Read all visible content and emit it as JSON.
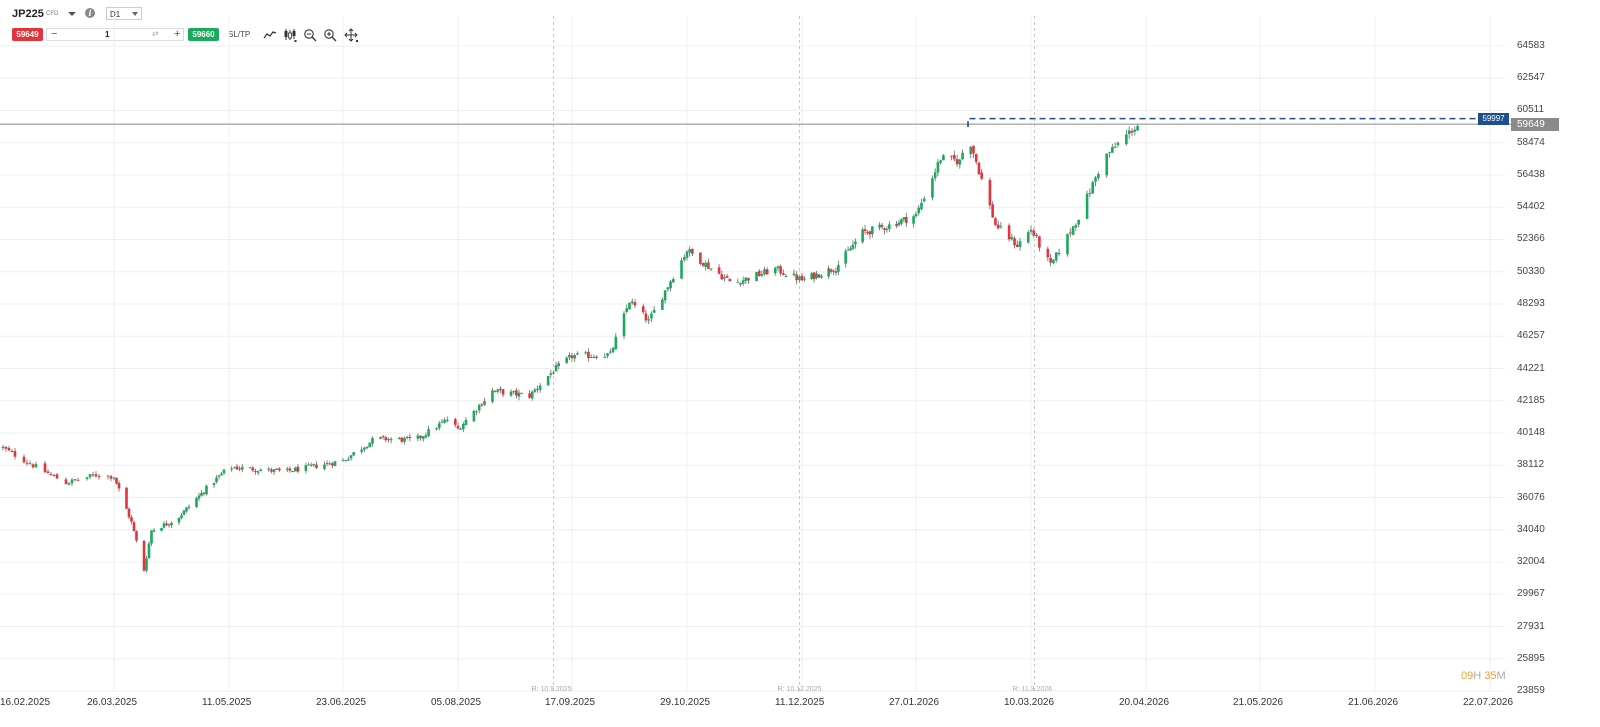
{
  "instrument": {
    "symbol": "JP225",
    "type": "CFD",
    "timeframe": "D1"
  },
  "trade_panel": {
    "sell_price": "59649",
    "buy_price": "59660",
    "quantity": "1",
    "minus_label": "−",
    "plus_label": "+",
    "swap_icon": "⇄",
    "sltp_label": "SL/TP"
  },
  "toolbar_icons": [
    "line-chart-icon",
    "candles-icon",
    "zoom-out-icon",
    "zoom-in-icon",
    "crosshair-icon"
  ],
  "price_axis": {
    "labels": [
      "64583",
      "62547",
      "60511",
      "58474",
      "56438",
      "54402",
      "52366",
      "50330",
      "48293",
      "46257",
      "44221",
      "42185",
      "40148",
      "38112",
      "36076",
      "34040",
      "32004",
      "29967",
      "27931",
      "25895",
      "23859"
    ],
    "current_price": "59649",
    "target_price": "59997"
  },
  "date_axis": {
    "labels": [
      "16.02.2025",
      "26.03.2025",
      "11.05.2025",
      "23.06.2025",
      "05.08.2025",
      "17.09.2025",
      "29.10.2025",
      "11.12.2025",
      "27.01.2026",
      "10.03.2026",
      "20.04.2026",
      "21.05.2026",
      "21.06.2026",
      "22.07.2026"
    ]
  },
  "rollover_markers": [
    "R: 10.9.2025",
    "R: 10.12.2025",
    "R: 11.3.2026"
  ],
  "countdown": {
    "hours": "09",
    "h_unit": "H",
    "minutes": "35",
    "m_unit": "M"
  },
  "colors": {
    "up": "#1aaa5c",
    "down": "#e2343d",
    "current_line": "#8a8a8a",
    "target_line": "#1d4f8e",
    "countdown": "#f0a030"
  },
  "chart_data": {
    "type": "candlestick",
    "x_range": [
      "16.02.2025",
      "22.07.2026"
    ],
    "y_range": [
      23859,
      64583
    ],
    "last_price": 59649,
    "target_level": 59997,
    "close_path": [
      [
        "16.02.2025",
        39300
      ],
      [
        "01.03.2025",
        37900
      ],
      [
        "10.03.2025",
        37000
      ],
      [
        "20.03.2025",
        37500
      ],
      [
        "26.03.2025",
        37400
      ],
      [
        "02.04.2025",
        34500
      ],
      [
        "07.04.2025",
        31500
      ],
      [
        "10.04.2025",
        34000
      ],
      [
        "20.04.2025",
        34700
      ],
      [
        "01.05.2025",
        36500
      ],
      [
        "11.05.2025",
        38000
      ],
      [
        "01.06.2025",
        37700
      ],
      [
        "23.06.2025",
        38400
      ],
      [
        "05.07.2025",
        39800
      ],
      [
        "20.07.2025",
        39700
      ],
      [
        "01.08.2025",
        41000
      ],
      [
        "05.08.2025",
        40400
      ],
      [
        "18.08.2025",
        42800
      ],
      [
        "01.09.2025",
        42500
      ],
      [
        "10.09.2025",
        44100
      ],
      [
        "17.09.2025",
        45000
      ],
      [
        "01.10.2025",
        45100
      ],
      [
        "08.10.2025",
        48500
      ],
      [
        "15.10.2025",
        47200
      ],
      [
        "29.10.2025",
        51700
      ],
      [
        "05.11.2025",
        50800
      ],
      [
        "15.11.2025",
        49600
      ],
      [
        "01.12.2025",
        50500
      ],
      [
        "11.12.2025",
        49800
      ],
      [
        "25.12.2025",
        50600
      ],
      [
        "05.01.2026",
        52800
      ],
      [
        "15.01.2026",
        53200
      ],
      [
        "27.01.2026",
        53900
      ],
      [
        "05.02.2026",
        57500
      ],
      [
        "12.02.2026",
        57300
      ],
      [
        "15.02.2026",
        59000
      ],
      [
        "25.02.2026",
        53300
      ],
      [
        "05.03.2026",
        52000
      ],
      [
        "10.03.2026",
        53000
      ],
      [
        "17.03.2026",
        50700
      ],
      [
        "27.03.2026",
        53800
      ],
      [
        "05.04.2026",
        57500
      ],
      [
        "15.04.2026",
        59300
      ],
      [
        "18.04.2026",
        59649
      ]
    ]
  }
}
